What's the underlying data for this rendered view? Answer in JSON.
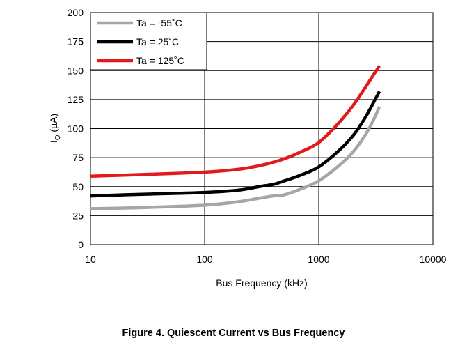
{
  "chart_data": {
    "type": "line",
    "xscale": "log",
    "xlabel": "Bus Frequency (kHz)",
    "ylabel_main": "I",
    "ylabel_sub": "Q",
    "ylabel_unit": " (µA)",
    "xlim": [
      10,
      10000
    ],
    "ylim": [
      0,
      200
    ],
    "xticks": [
      10,
      100,
      1000,
      10000
    ],
    "xtick_labels": [
      "10",
      "100",
      "1000",
      "10000"
    ],
    "yticks": [
      0,
      25,
      50,
      75,
      100,
      125,
      150,
      175,
      200
    ],
    "ytick_labels": [
      "0",
      "25",
      "50",
      "75",
      "100",
      "125",
      "150",
      "175",
      "200"
    ],
    "grid": true,
    "legend_position": "top-left",
    "series": [
      {
        "name": "Ta = -55˚C",
        "color": "#a6a6a6",
        "x": [
          10,
          30,
          100,
          200,
          300,
          400,
          500,
          700,
          1000,
          1500,
          2000,
          2500,
          3000,
          3400
        ],
        "y": [
          31,
          32,
          34,
          37,
          40,
          42,
          43,
          48,
          55,
          68,
          80,
          93,
          107,
          119
        ]
      },
      {
        "name": "Ta = 25˚C",
        "color": "#000000",
        "x": [
          10,
          30,
          100,
          200,
          300,
          400,
          500,
          700,
          1000,
          1500,
          2000,
          2500,
          3000,
          3400
        ],
        "y": [
          42,
          43.5,
          45,
          47,
          50,
          52,
          55,
          60,
          67,
          81,
          94,
          108,
          122,
          132
        ]
      },
      {
        "name": "Ta = 125˚C",
        "color": "#e31a1c",
        "x": [
          10,
          30,
          100,
          200,
          300,
          400,
          500,
          700,
          1000,
          1500,
          2000,
          2500,
          3000,
          3400
        ],
        "y": [
          59,
          60.5,
          62.5,
          65,
          68,
          71,
          74,
          80,
          88,
          105,
          120,
          134,
          146,
          154
        ]
      }
    ]
  },
  "caption": "Figure 4. Quiescent Current vs Bus Frequency"
}
